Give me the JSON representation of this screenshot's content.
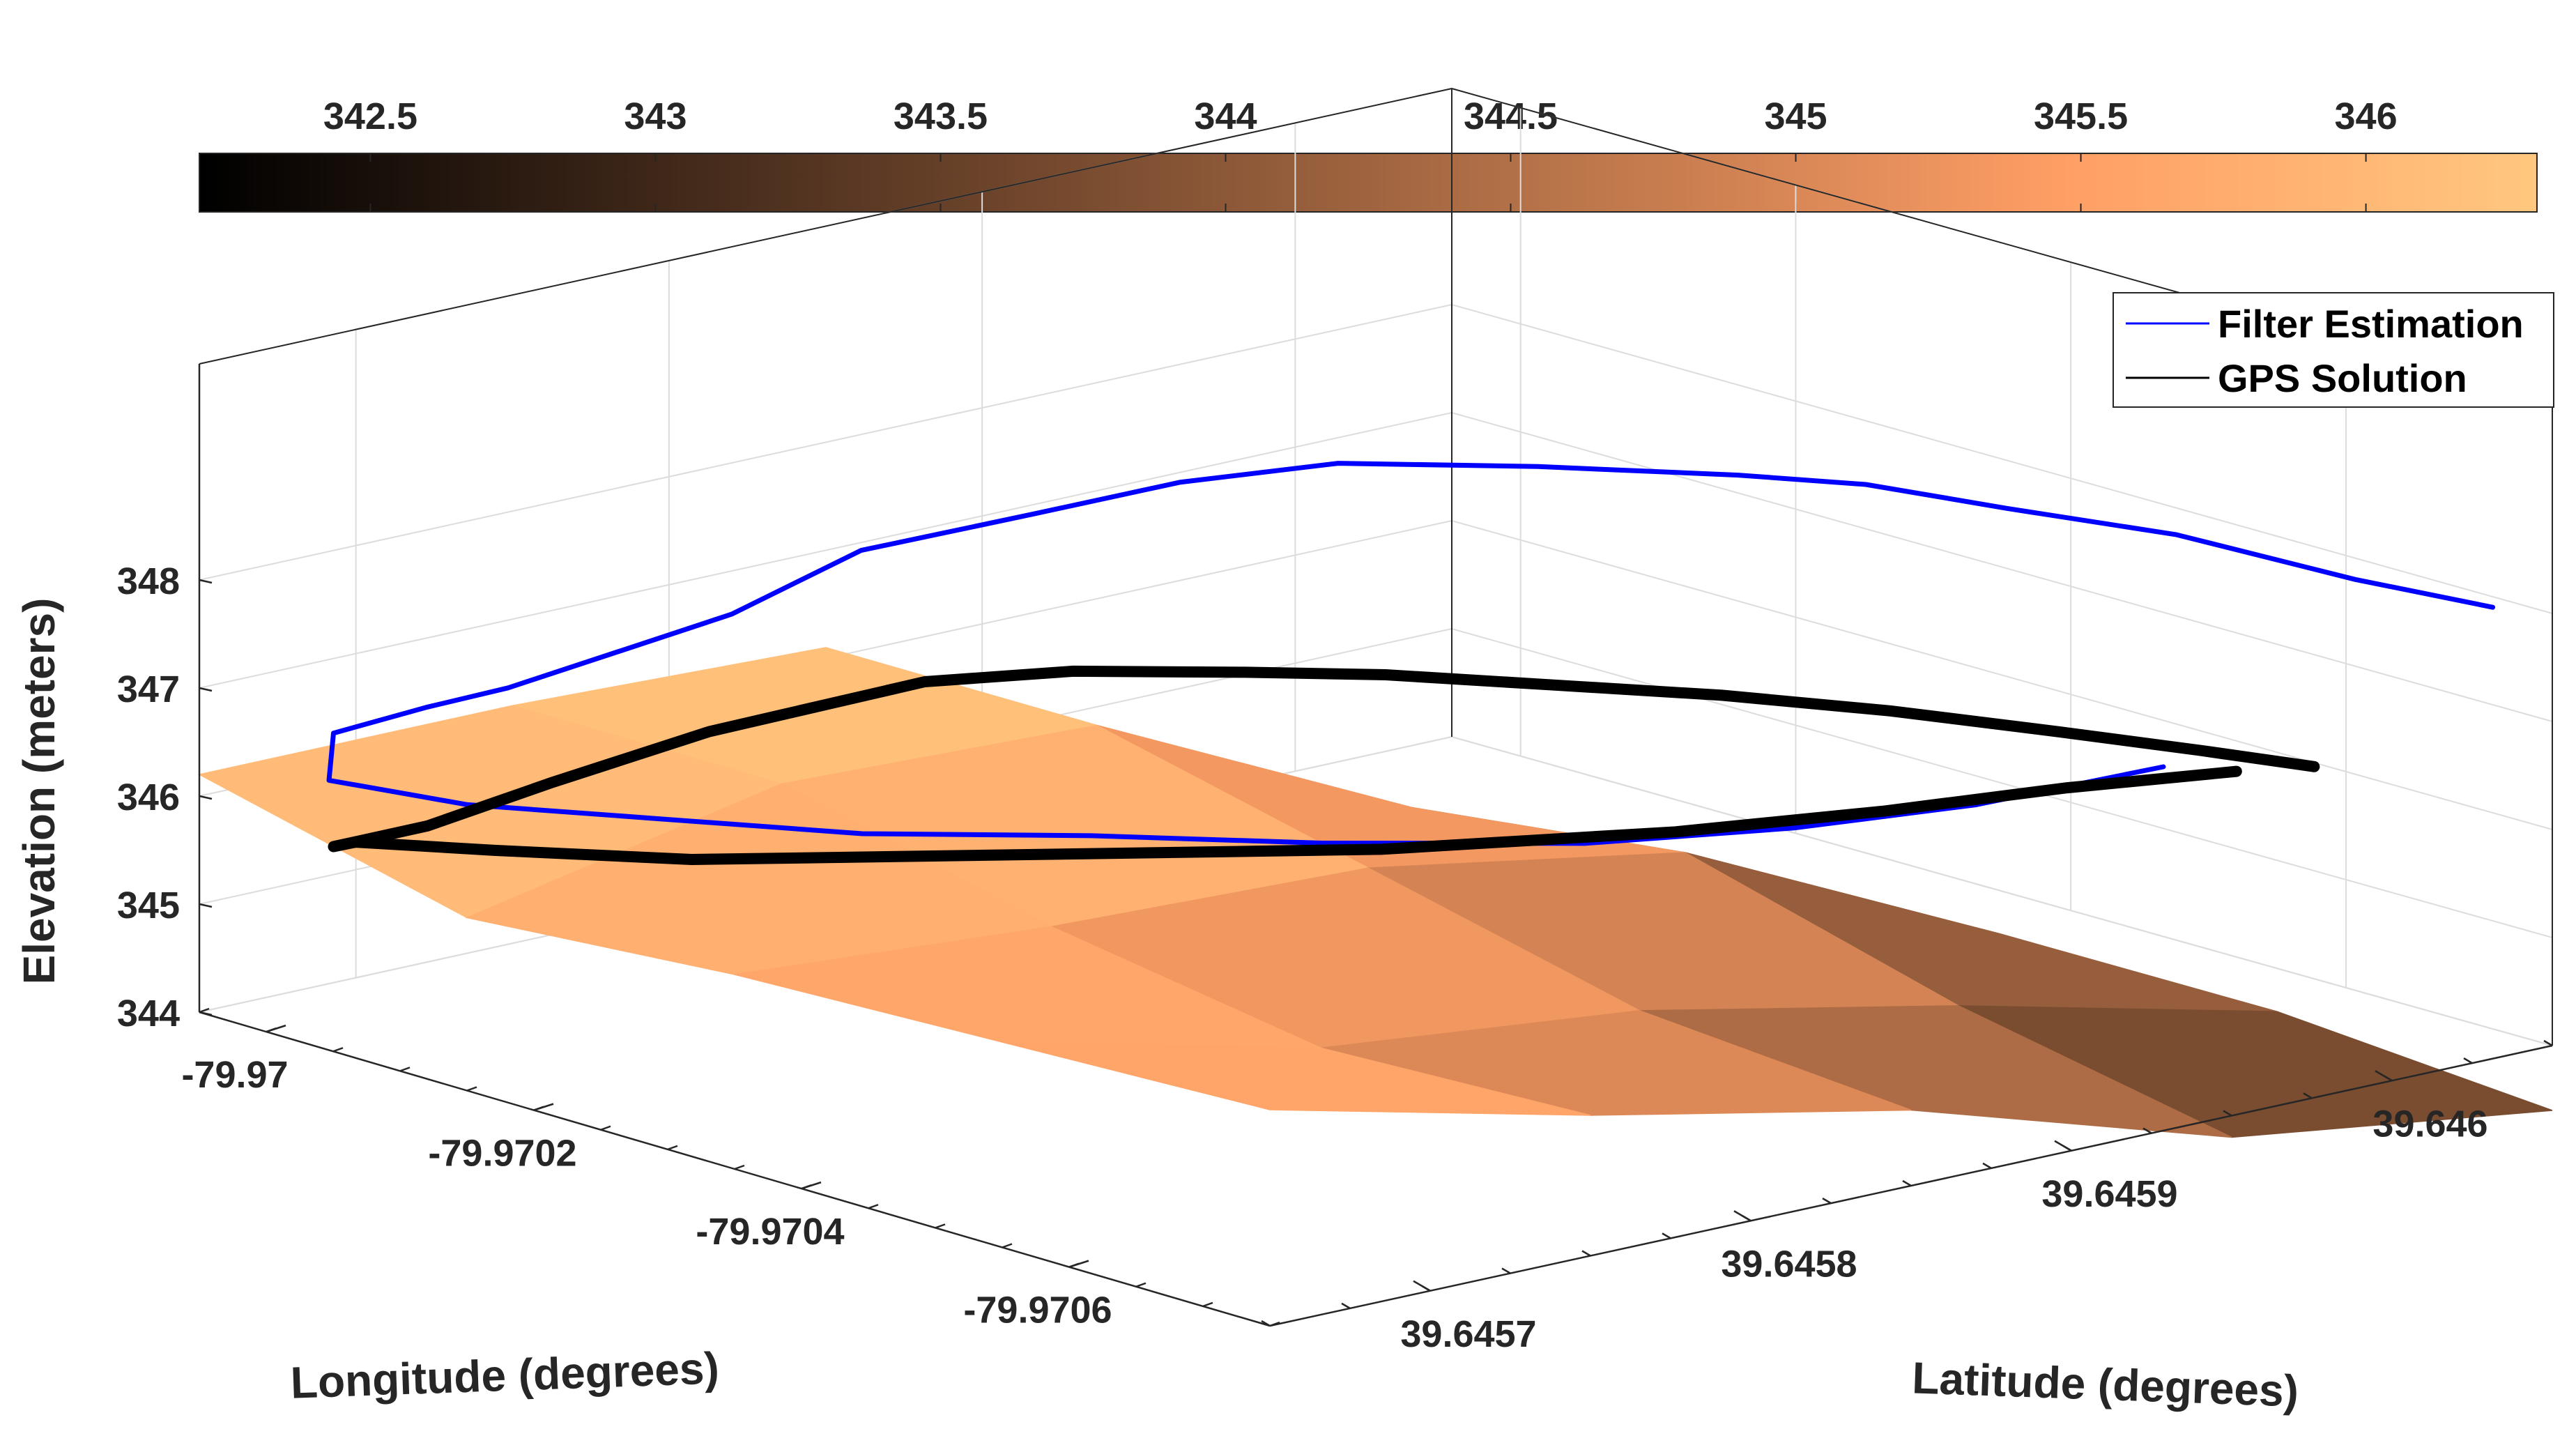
{
  "chart_data": {
    "type": "3d-surface-line",
    "colorbar": {
      "ticks": [
        "342.5",
        "343",
        "343.5",
        "344",
        "344.5",
        "345",
        "345.5",
        "346"
      ],
      "tick_values": [
        342.5,
        343,
        343.5,
        344,
        344.5,
        345,
        345.5,
        346
      ],
      "range": [
        342.2,
        346.3
      ],
      "colormap": "copper"
    },
    "axes": {
      "xlabel": "Longitude (degrees)",
      "ylabel": "Latitude (degrees)",
      "zlabel": "Elevation (meters)",
      "xticks": [
        "-79.9706",
        "-79.9704",
        "-79.9702",
        "-79.97"
      ],
      "xtick_values": [
        -79.9706,
        -79.9704,
        -79.9702,
        -79.97
      ],
      "yticks": [
        "39.6457",
        "39.6458",
        "39.6459",
        "39.646"
      ],
      "ytick_values": [
        39.6457,
        39.6458,
        39.6459,
        39.646
      ],
      "zticks": [
        "344",
        "345",
        "346",
        "347",
        "348"
      ],
      "ztick_values": [
        344,
        345,
        346,
        347,
        348
      ],
      "xlim": [
        -79.97075,
        -79.96995
      ],
      "ylim": [
        39.64565,
        39.64605
      ],
      "zlim": [
        344,
        348
      ],
      "grid": true
    },
    "legend": {
      "position": "top-right",
      "entries": [
        {
          "label": "Filter Estimation",
          "color": "#0000ff"
        },
        {
          "label": "GPS Solution",
          "color": "#000000"
        }
      ]
    },
    "surface": {
      "x": [
        -79.97075,
        -79.97055,
        -79.97035,
        -79.97015,
        -79.96995
      ],
      "y": [
        39.64565,
        39.64575,
        39.64585,
        39.64595,
        39.64605
      ],
      "z": [
        [
          346.0,
          345.9,
          345.8,
          345.6,
          346.2
        ],
        [
          345.3,
          345.2,
          345.6,
          346.2,
          346.2
        ],
        [
          344.7,
          344.9,
          345.5,
          346.1,
          346.1
        ],
        [
          343.8,
          344.3,
          345.0,
          344.7,
          344.2
        ],
        [
          343.4,
          343.6,
          343.6,
          343.4,
          343.2
        ]
      ]
    },
    "series": [
      {
        "name": "Filter Estimation",
        "color": "#0000ff",
        "points": [
          [
            -79.97073,
            39.64604,
            348.05
          ],
          [
            -79.97063,
            39.64604,
            347.95
          ],
          [
            -79.9705,
            39.64604,
            347.9
          ],
          [
            -79.9704,
            39.64603,
            347.85
          ],
          [
            -79.97032,
            39.64602,
            347.85
          ],
          [
            -79.97025,
            39.64601,
            347.75
          ],
          [
            -79.97015,
            39.64599,
            347.6
          ],
          [
            -79.97005,
            39.64597,
            347.4
          ],
          [
            -79.96998,
            39.64595,
            347.1
          ],
          [
            -79.96994,
            39.64592,
            346.85
          ],
          [
            -79.96993,
            39.64587,
            346.8
          ],
          [
            -79.96995,
            39.64582,
            346.6
          ],
          [
            -79.96996,
            39.64578,
            346.55
          ],
          [
            -79.96997,
            39.64574,
            346.5
          ],
          [
            -79.96998,
            39.64571,
            346.55
          ],
          [
            -79.96998,
            39.64568,
            346.5
          ],
          [
            -79.97,
            39.64567,
            346.2
          ],
          [
            -79.97008,
            39.64568,
            346.2
          ],
          [
            -79.97018,
            39.6457,
            346.3
          ],
          [
            -79.97028,
            39.64572,
            346.4
          ],
          [
            -79.97038,
            39.64575,
            346.55
          ],
          [
            -79.97048,
            39.64578,
            346.65
          ],
          [
            -79.97058,
            39.64582,
            346.75
          ],
          [
            -79.97064,
            39.64586,
            346.85
          ],
          [
            -79.97068,
            39.6459,
            346.95
          ],
          [
            -79.9707,
            39.64595,
            347.05
          ]
        ]
      },
      {
        "name": "GPS Solution",
        "color": "#000000",
        "points": [
          [
            -79.97074,
            39.64598,
            347.0
          ],
          [
            -79.97068,
            39.64597,
            347.0
          ],
          [
            -79.9706,
            39.64596,
            346.95
          ],
          [
            -79.9705,
            39.64595,
            346.85
          ],
          [
            -79.9704,
            39.64594,
            346.7
          ],
          [
            -79.9703,
            39.64593,
            346.5
          ],
          [
            -79.9702,
            39.64592,
            346.3
          ],
          [
            -79.97012,
            39.64591,
            346.1
          ],
          [
            -79.97004,
            39.64589,
            345.95
          ],
          [
            -79.97,
            39.64586,
            345.9
          ],
          [
            -79.96998,
            39.6458,
            345.75
          ],
          [
            -79.96998,
            39.64575,
            345.6
          ],
          [
            -79.96998,
            39.64571,
            345.45
          ],
          [
            -79.96998,
            39.64568,
            345.45
          ],
          [
            -79.97002,
            39.64567,
            345.7
          ],
          [
            -79.9701,
            39.64568,
            345.85
          ],
          [
            -79.9702,
            39.6457,
            346.0
          ],
          [
            -79.9703,
            39.64573,
            346.2
          ],
          [
            -79.9704,
            39.64576,
            346.4
          ],
          [
            -79.9705,
            39.64579,
            346.6
          ],
          [
            -79.9706,
            39.64584,
            346.8
          ],
          [
            -79.97066,
            39.64588,
            346.95
          ],
          [
            -79.9707,
            39.64592,
            347.05
          ],
          [
            -79.97073,
            39.64596,
            347.05
          ]
        ]
      }
    ]
  }
}
